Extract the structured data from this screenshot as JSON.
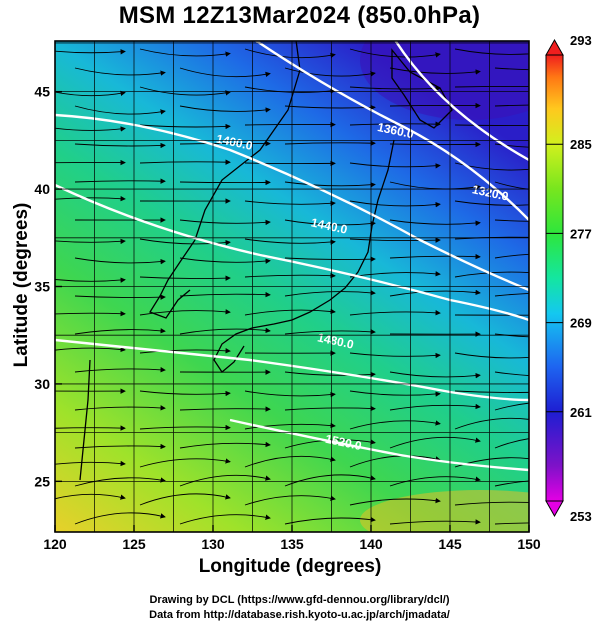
{
  "title": "MSM 12Z13Mar2024 (850.0hPa)",
  "x_axis": {
    "label": "Longitude (degrees)",
    "range": [
      120,
      150
    ],
    "ticks": [
      120,
      125,
      130,
      135,
      140,
      145,
      150
    ],
    "tick_labels": [
      "120",
      "125",
      "130",
      "135",
      "140",
      "145",
      "150"
    ]
  },
  "y_axis": {
    "label": "Latitude  (degrees)",
    "range": [
      22.4,
      47.6
    ],
    "ticks": [
      25,
      30,
      35,
      40,
      45
    ],
    "tick_labels": [
      "25",
      "30",
      "35",
      "40",
      "45"
    ]
  },
  "colorbar": {
    "min": 253,
    "max": 293,
    "tick_values": [
      253,
      261,
      269,
      277,
      285,
      293
    ],
    "tick_labels": [
      "253",
      "261",
      "269",
      "277",
      "285",
      "293"
    ],
    "colors": [
      "#e400e4",
      "#7d12c8",
      "#1e1ed2",
      "#1e64f0",
      "#14c8f0",
      "#14e6a0",
      "#2ee63c",
      "#78e61e",
      "#d2f01e",
      "#ffc81e",
      "#ff7814",
      "#f01e1e"
    ]
  },
  "contours": {
    "color": "#ffffff",
    "labels": [
      {
        "text": "1400.0",
        "lon": 131.3,
        "lat": 42.2
      },
      {
        "text": "1360.0",
        "lon": 141.5,
        "lat": 42.8
      },
      {
        "text": "1320.0",
        "lon": 147.5,
        "lat": 39.6
      },
      {
        "text": "1440.0",
        "lon": 137.3,
        "lat": 37.9
      },
      {
        "text": "1480.0",
        "lon": 137.7,
        "lat": 32.0
      },
      {
        "text": "1520.0",
        "lon": 138.2,
        "lat": 26.8
      }
    ]
  },
  "footer": {
    "line1": "Drawing by DCL (https://www.gfd-dennou.org/library/dcl/)",
    "line2": "Data from http://database.rish.kyoto-u.ac.jp/arch/jmadata/"
  }
}
